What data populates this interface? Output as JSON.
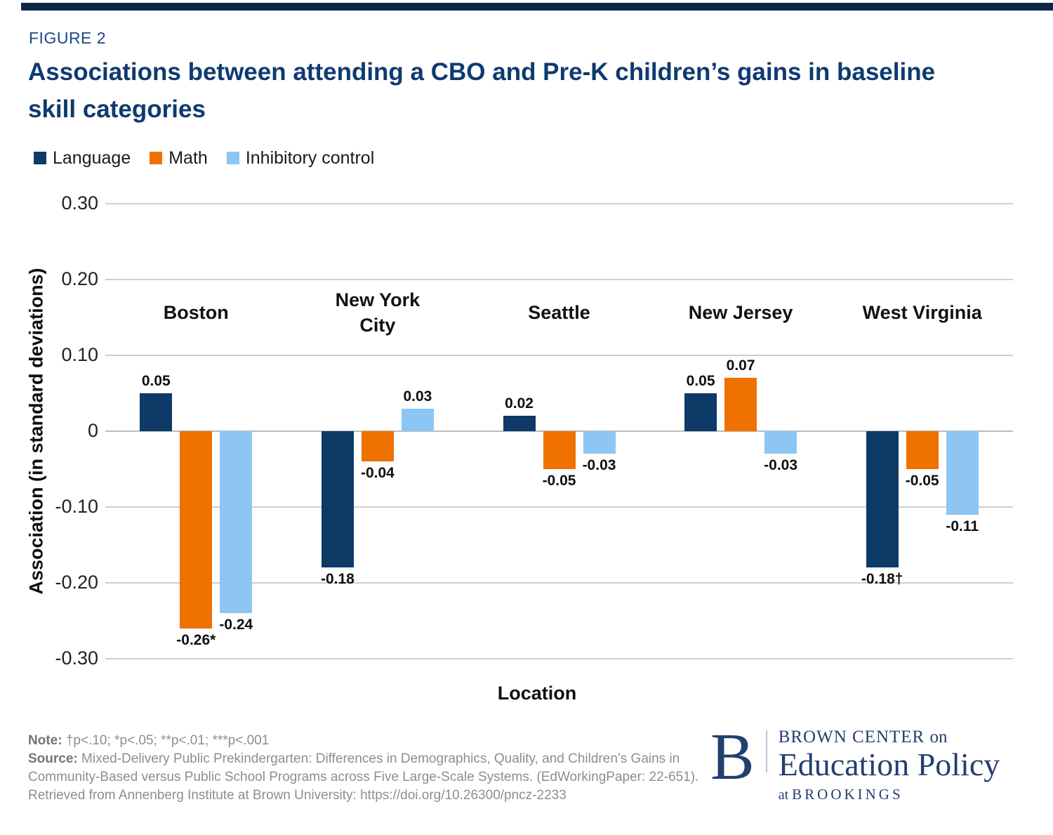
{
  "figure_label": "FIGURE 2",
  "title": "Associations between attending a CBO and Pre-K children’s gains in baseline skill categories",
  "chart_data": {
    "type": "bar",
    "title": "Associations between attending a CBO and Pre-K children’s gains in baseline skill categories",
    "categories": [
      "Boston",
      "New York\nCity",
      "Seattle",
      "New Jersey",
      "West Virginia"
    ],
    "series": [
      {
        "name": "Language",
        "color": "#0d3a66",
        "values": [
          0.05,
          -0.18,
          0.02,
          0.05,
          -0.18
        ],
        "labels": [
          "0.05",
          "-0.18",
          "0.02",
          "0.05",
          "-0.18†"
        ]
      },
      {
        "name": "Math",
        "color": "#ef7100",
        "values": [
          -0.26,
          -0.04,
          -0.05,
          0.07,
          -0.05
        ],
        "labels": [
          "-0.26*",
          "-0.04",
          "-0.05",
          "0.07",
          "-0.05"
        ]
      },
      {
        "name": "Inhibitory control",
        "color": "#8dc6f2",
        "values": [
          -0.24,
          0.03,
          -0.03,
          -0.03,
          -0.11
        ],
        "labels": [
          "-0.24",
          "0.03",
          "-0.03",
          "-0.03",
          "-0.11"
        ]
      }
    ],
    "xlabel": "Location",
    "ylabel": "Association (in standard deviations)",
    "ylim": [
      -0.3,
      0.3
    ],
    "yticks": {
      "values": [
        0.3,
        0.2,
        0.1,
        0,
        -0.1,
        -0.2,
        -0.3
      ],
      "labels": [
        "0.30",
        "0.20",
        "0.10",
        "0",
        "-0.10",
        "-0.20",
        "-0.30"
      ]
    },
    "grid": true,
    "legend_position": "top-left"
  },
  "footer": {
    "note_label": "Note:",
    "note_text": "†p<.10; *p<.05; **p<.01; ***p<.001",
    "source_label": "Source:",
    "source_text": "Mixed-Delivery Public Prekindergarten: Differences in Demographics, Quality, and Children’s Gains in Community-Based versus Public School Programs across Five Large-Scale Systems. (EdWorkingPaper: 22-651). Retrieved from Annenberg Institute at Brown University: https://doi.org/10.26300/pncz-2233"
  },
  "logo": {
    "monogram": "B",
    "line1_caps": "BROWN CENTER",
    "line1_small": "on",
    "line2": "Education Policy",
    "line3_small": "at",
    "line3_caps": "BROOKINGS"
  },
  "colors": {
    "title_navy": "#0e3a70",
    "figure_label_navy": "#1a4a82",
    "bar_navy": "#0d3a66",
    "bar_orange": "#ef7100",
    "bar_light_blue": "#8dc6f2",
    "gridline_gray": "#cfcfcf",
    "top_rule_navy": "#0b2848",
    "logo_navy": "#223f6e",
    "footer_gray": "#8e8e8e"
  }
}
